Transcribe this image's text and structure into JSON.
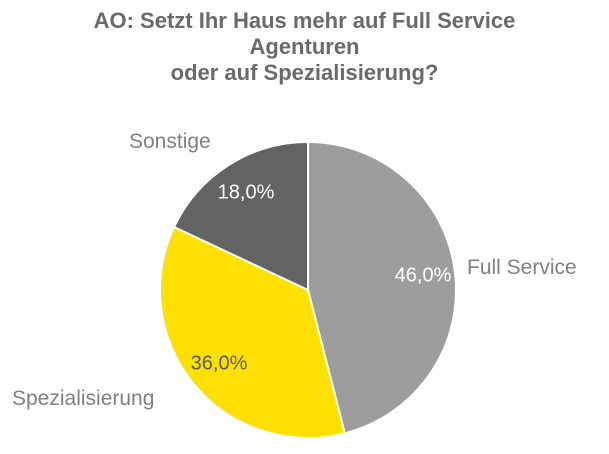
{
  "chart_data": {
    "type": "pie",
    "title": "AO: Setzt Ihr Haus mehr auf Full Service\nAgenturen\noder auf Spezialisierung?",
    "start_angle_deg": 0,
    "direction": "clockwise",
    "total": 100,
    "legend_position": "none",
    "slices": [
      {
        "label": "Full Service",
        "value": 46.0,
        "display": "46,0%",
        "color": "#9D9D9D",
        "value_label_color": "#FFFFFF"
      },
      {
        "label": "Spezialisierung",
        "value": 36.0,
        "display": "36,0%",
        "color": "#FFE000",
        "value_label_color": "#595959"
      },
      {
        "label": "Sonstige",
        "value": 18.0,
        "display": "18,0%",
        "color": "#636363",
        "value_label_color": "#FFFFFF"
      }
    ],
    "slice_border_color": "#FFFFFF"
  }
}
